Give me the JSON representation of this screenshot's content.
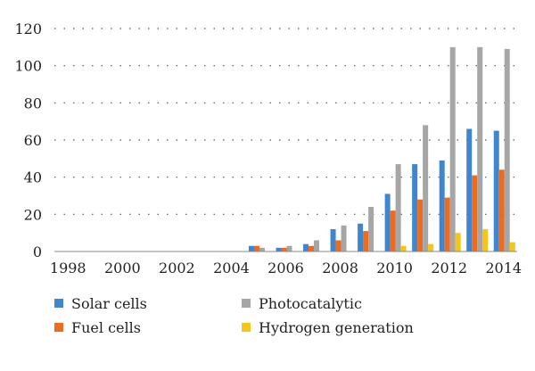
{
  "chart_data": {
    "type": "bar",
    "title": "",
    "xlabel": "",
    "ylabel": "",
    "ylim": [
      0,
      120
    ],
    "yticks": [
      0,
      20,
      40,
      60,
      80,
      100,
      120
    ],
    "grid": true,
    "legend_position": "bottom",
    "categories": [
      "1998",
      "1999",
      "2000",
      "2001",
      "2002",
      "2003",
      "2004",
      "2005",
      "2006",
      "2007",
      "2008",
      "2009",
      "2010",
      "2011",
      "2012",
      "2013",
      "2014"
    ],
    "xtick_labels": [
      "1998",
      "2000",
      "2002",
      "2004",
      "2006",
      "2008",
      "2010",
      "2012",
      "2014"
    ],
    "series": [
      {
        "name": "Solar cells",
        "color": "#3f86cf",
        "values": [
          0,
          0,
          0,
          0,
          0,
          0,
          0,
          3,
          2,
          4,
          12,
          15,
          31,
          47,
          49,
          66,
          65
        ]
      },
      {
        "name": "Fuel cells",
        "color": "#ec6b1f",
        "values": [
          0,
          0,
          0,
          0,
          0,
          0,
          0,
          3,
          2,
          3,
          6,
          11,
          22,
          28,
          29,
          41,
          44
        ]
      },
      {
        "name": "Photocatalytic",
        "color": "#a6a6a6",
        "values": [
          0,
          0,
          0,
          0,
          0,
          0,
          0,
          2,
          3,
          6,
          14,
          24,
          47,
          68,
          110,
          110,
          109
        ]
      },
      {
        "name": "Hydrogen generation",
        "color": "#f5c518",
        "values": [
          0,
          0,
          0,
          0,
          0,
          0,
          0,
          0,
          0,
          0,
          0,
          0,
          3,
          4,
          10,
          12,
          5
        ]
      }
    ]
  }
}
